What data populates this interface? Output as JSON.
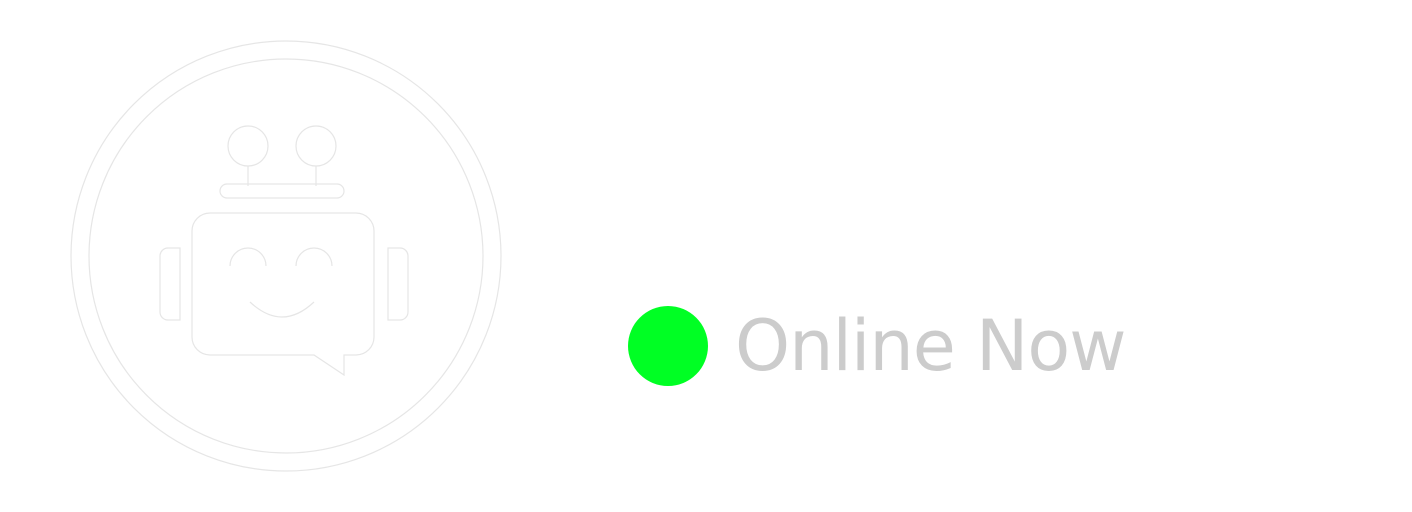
{
  "avatar": {
    "icon": "robot-chat-icon",
    "ring_color": "#ffffff",
    "outline_color": "#e6e6e6"
  },
  "status": {
    "label": "Online Now",
    "dot_color": "#00ff24",
    "text_color": "#cccccc"
  }
}
